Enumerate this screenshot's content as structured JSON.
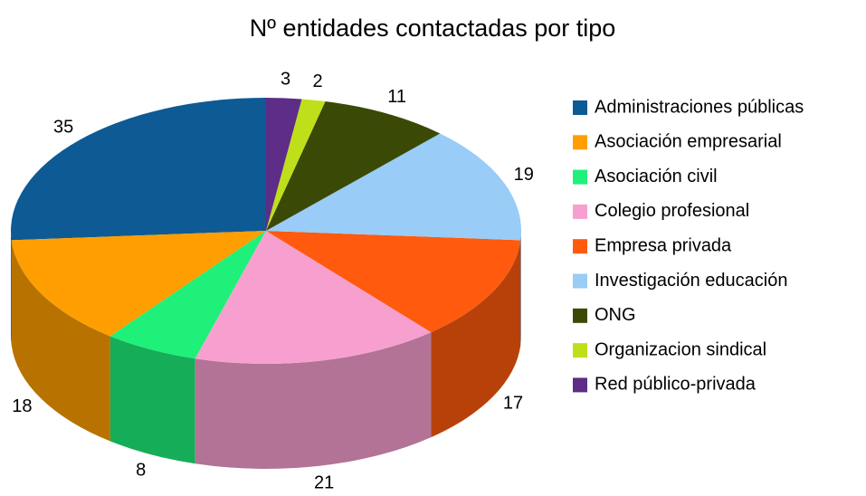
{
  "chart_data": {
    "type": "pie3d",
    "title": "Nº entidades contactadas por tipo",
    "categories": [
      "Administraciones públicas",
      "Asociación empresarial",
      "Asociación civil",
      "Colegio profesional",
      "Empresa privada",
      "Investigación educación",
      "ONG",
      "Organizacion sindical",
      "Red público-privada"
    ],
    "values": [
      35,
      18,
      8,
      21,
      17,
      19,
      11,
      2,
      3
    ],
    "colors": [
      "#0e5a94",
      "#ff9e00",
      "#1ef07a",
      "#f7a0d0",
      "#ff5a0e",
      "#99ccf7",
      "#3a4a06",
      "#bfdf1a",
      "#5d2d87"
    ],
    "legend": "right"
  }
}
